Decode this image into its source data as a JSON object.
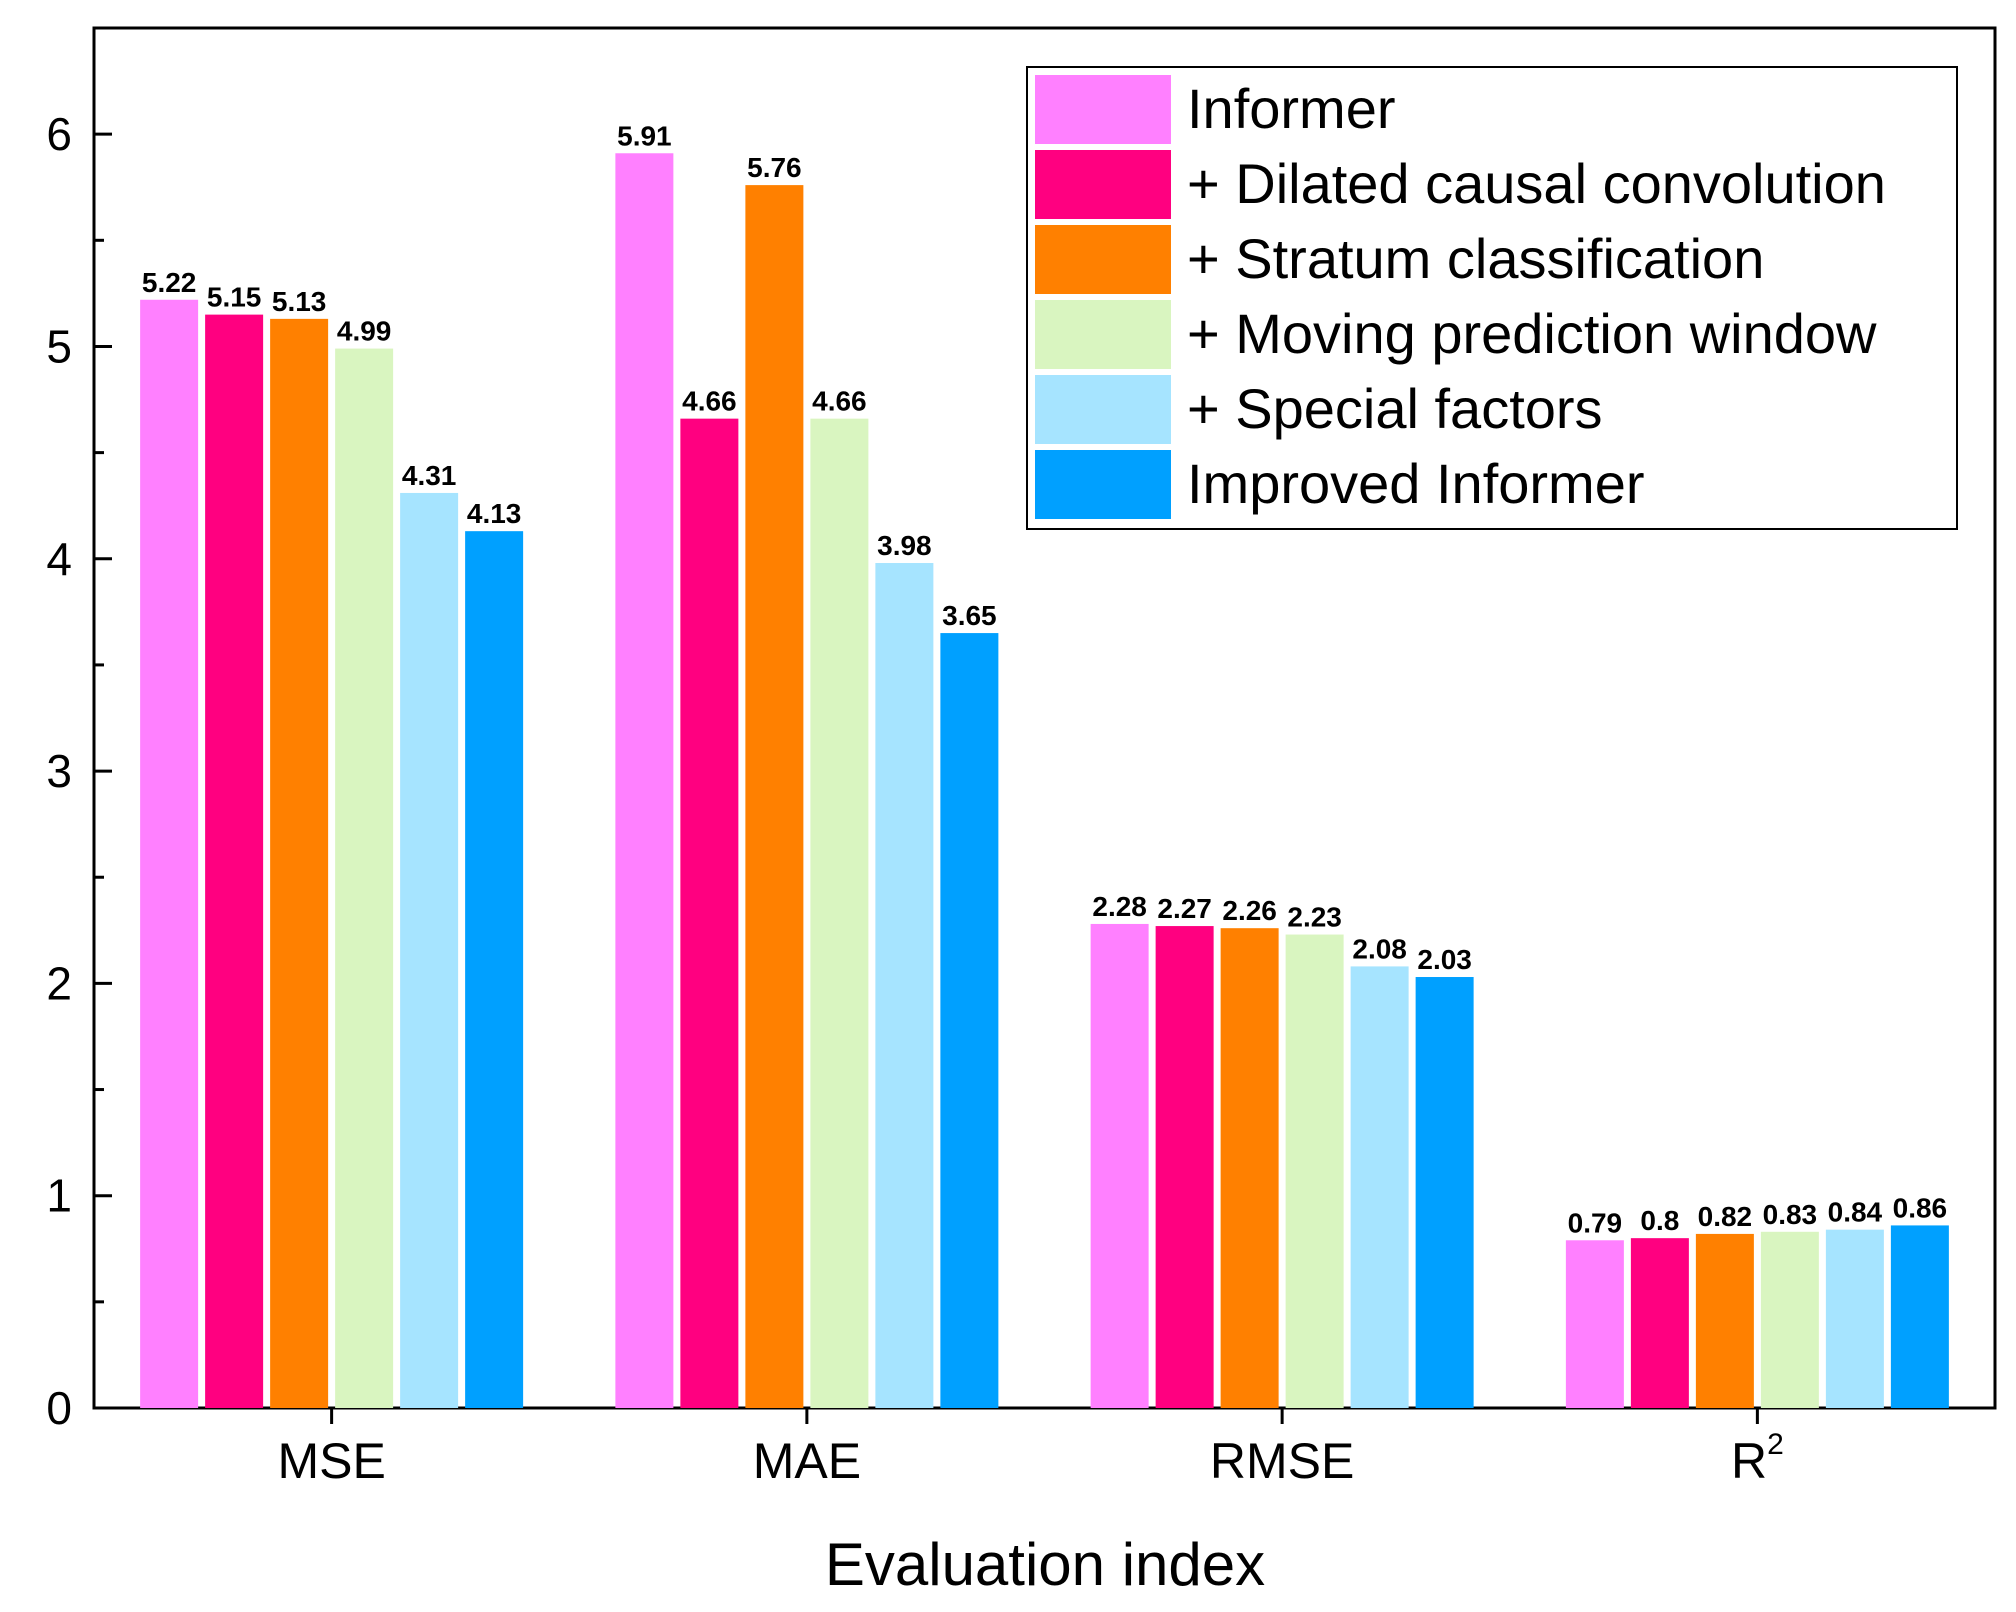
{
  "chart_data": {
    "type": "bar",
    "title": "",
    "xlabel": "Evaluation index",
    "ylabel": "",
    "ylim": [
      0,
      6.5
    ],
    "yticks": [
      0,
      1,
      2,
      3,
      4,
      5,
      6
    ],
    "categories": [
      "MSE",
      "MAE",
      "RMSE",
      "R"
    ],
    "category_superscripts": [
      "",
      "",
      "",
      "2"
    ],
    "legend_position": "top-right",
    "series": [
      {
        "name": "Informer",
        "color": "#ff80ff",
        "values": [
          5.22,
          5.91,
          2.28,
          0.79
        ],
        "labels": [
          "5.22",
          "5.91",
          "2.28",
          "0.79"
        ]
      },
      {
        "name": "+ Dilated causal convolution",
        "color": "#ff0080",
        "values": [
          5.15,
          4.66,
          2.27,
          0.8
        ],
        "labels": [
          "5.15",
          "4.66",
          "2.27",
          "0.8"
        ]
      },
      {
        "name": "+ Stratum classification",
        "color": "#ff8000",
        "values": [
          5.13,
          5.76,
          2.26,
          0.82
        ],
        "labels": [
          "5.13",
          "5.76",
          "2.26",
          "0.82"
        ]
      },
      {
        "name": "+ Moving prediction window",
        "color": "#d9f5c0",
        "values": [
          4.99,
          4.66,
          2.23,
          0.83
        ],
        "labels": [
          "4.99",
          "4.66",
          "2.23",
          "0.83"
        ]
      },
      {
        "name": "+ Special factors",
        "color": "#a6e4ff",
        "values": [
          4.31,
          3.98,
          2.08,
          0.84
        ],
        "labels": [
          "4.31",
          "3.98",
          "2.08",
          "0.84"
        ]
      },
      {
        "name": "Improved Informer",
        "color": "#00a0ff",
        "values": [
          4.13,
          3.65,
          2.03,
          0.86
        ],
        "labels": [
          "4.13",
          "3.65",
          "2.03",
          "0.86"
        ]
      }
    ]
  }
}
